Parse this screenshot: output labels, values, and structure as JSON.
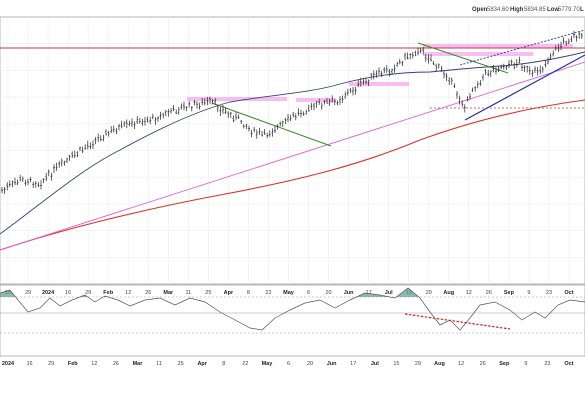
{
  "header": {
    "open_label": "Open",
    "open_value": "5834.60",
    "high_label": "High",
    "high_value": "5834.85",
    "low_label": "Low",
    "low_value": "5779.70",
    "last_label": "L"
  },
  "chart_data": [
    {
      "type": "line",
      "panel": "price",
      "note": "daily OHLC bars with 50- and 200-day moving averages and drawn trendlines",
      "x_ticks": [
        "16",
        "29",
        "2024",
        "16",
        "29",
        "Feb",
        "12",
        "26",
        "Mar",
        "11",
        "25",
        "Apr",
        "8",
        "22",
        "May",
        "6",
        "20",
        "Jun",
        "17",
        "Jul",
        "15",
        "29",
        "Aug",
        "12",
        "26",
        "Sep",
        "9",
        "23",
        "Oct"
      ],
      "y_grid_levels": 9,
      "colors": {
        "bars": "#222222",
        "ma_short": "#3a3f7a",
        "ma_long": "#d9322a",
        "trendline_pink": "#e060d0",
        "trendline_green": "#3a8a2a",
        "trendline_blue": "#2630a0",
        "resistance": "#c83a4a",
        "highlight_band": "#f4a8ec"
      }
    },
    {
      "type": "line",
      "panel": "oscillator",
      "x_ticks": [
        "2024",
        "16",
        "29",
        "Feb",
        "12",
        "26",
        "Mar",
        "11",
        "25",
        "Apr",
        "8",
        "22",
        "May",
        "6",
        "20",
        "Jun",
        "17",
        "Jul",
        "15",
        "29",
        "Aug",
        "12",
        "26",
        "Sep",
        "9",
        "23",
        "Oct"
      ],
      "colors": {
        "line": "#555555",
        "fill": "#5c9a8e",
        "divergence": "#e02020",
        "band": "#999999"
      }
    }
  ]
}
